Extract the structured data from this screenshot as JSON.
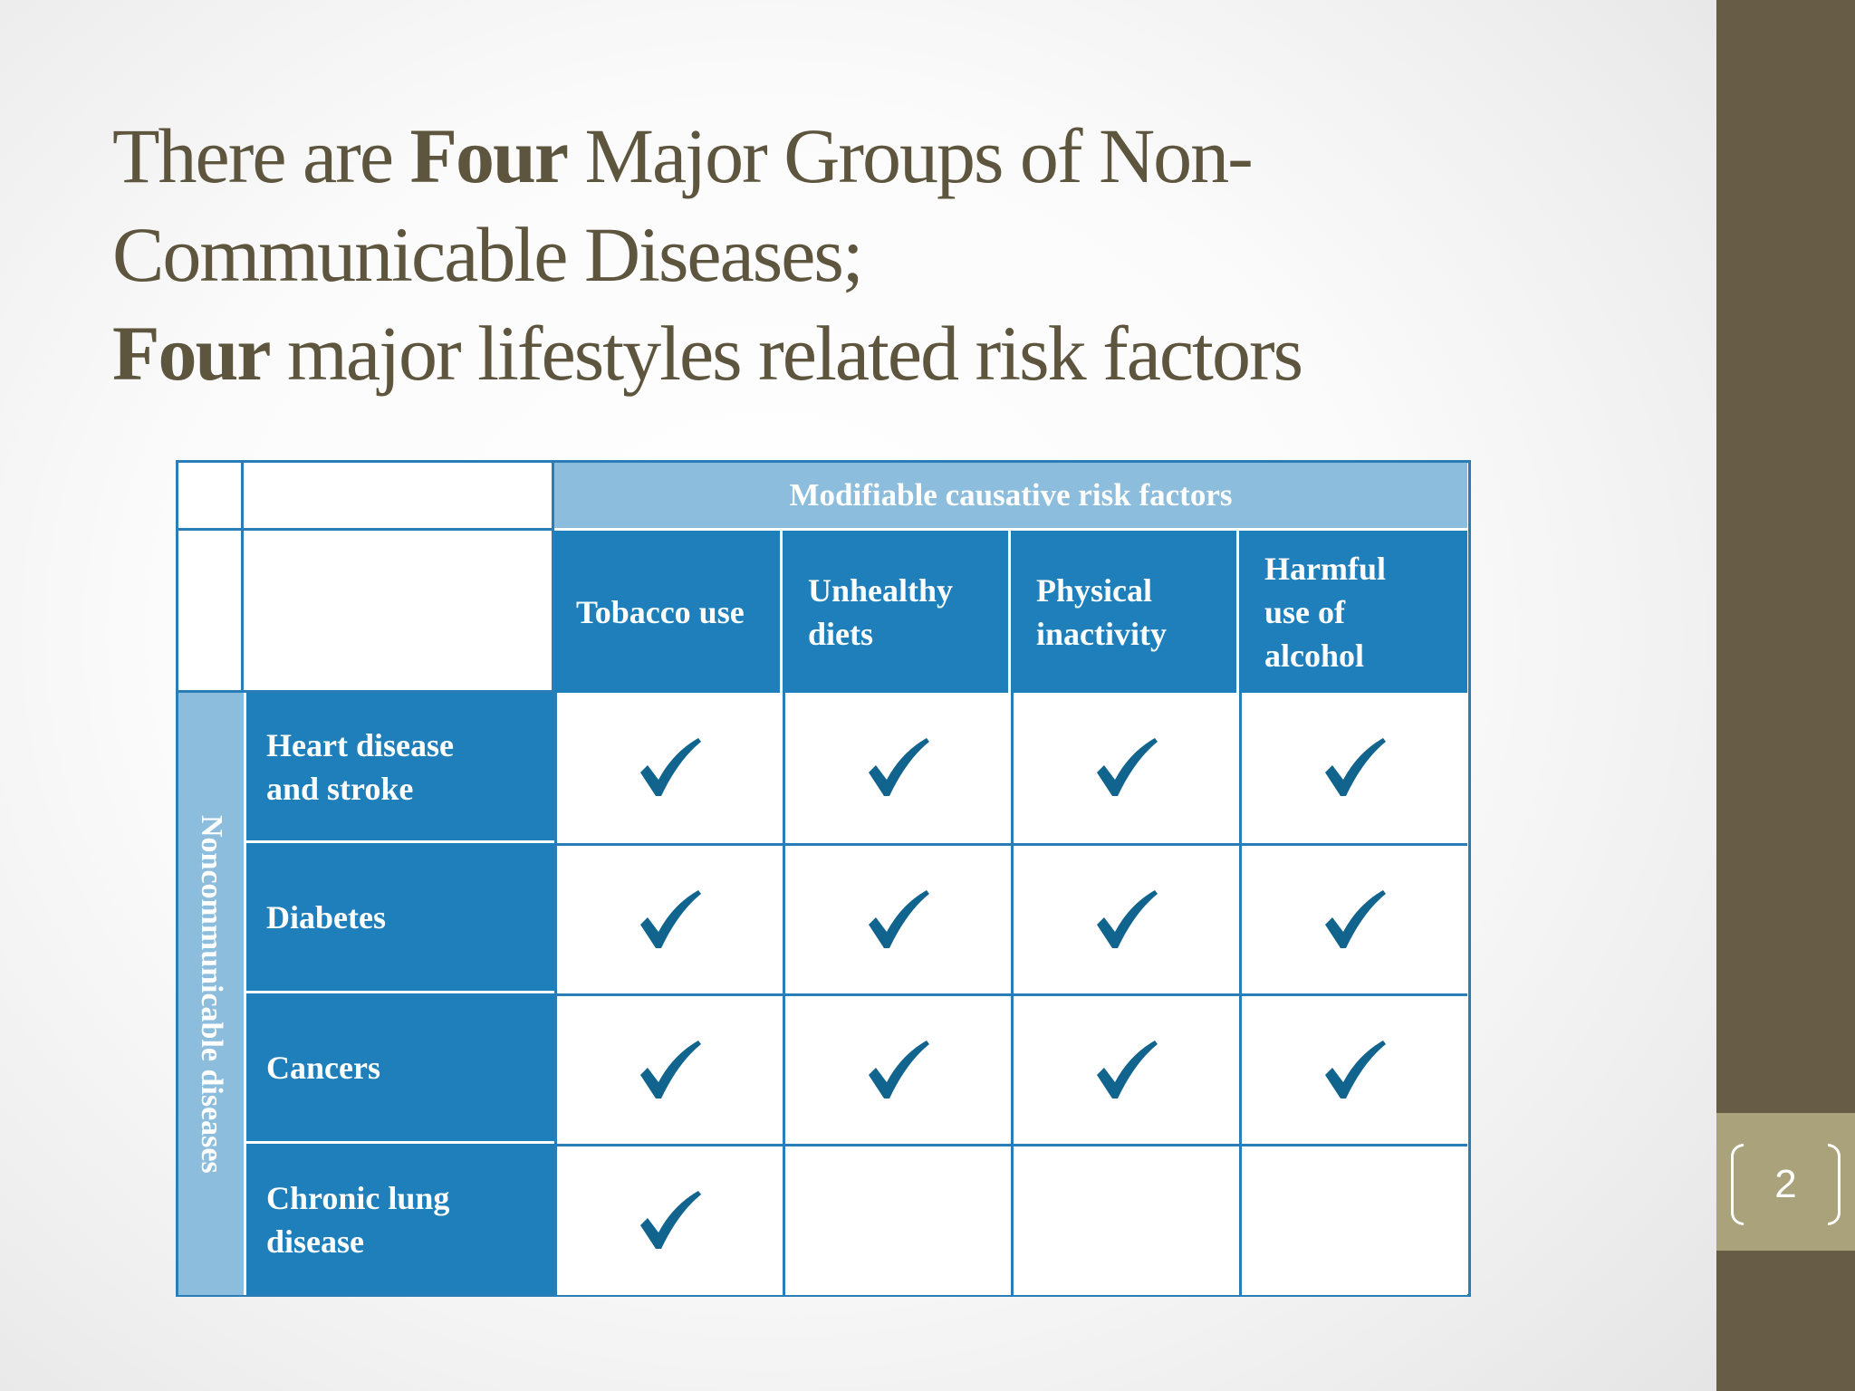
{
  "slide": {
    "title": {
      "line1_pre": "There are ",
      "line1_bold": "Four",
      "line1_post": " Major Groups of Non-",
      "line2": "Communicable Diseases;",
      "line3_bold": "Four",
      "line3_post": " major lifestyles related risk factors"
    },
    "page_number": "2",
    "colors": {
      "title": "#5d553d",
      "sidebar": "#675d46",
      "page_box": "#a9a27b",
      "header_dark": "#1f7fba",
      "header_light": "#8cbddc",
      "check": "#11648d"
    }
  },
  "table": {
    "super_header": "Modifiable causative risk factors",
    "row_group_label": "Noncommunicable diseases",
    "risk_factors": [
      {
        "line1": "Tobacco use",
        "line2": "",
        "line3": ""
      },
      {
        "line1": "Unhealthy",
        "line2": "diets",
        "line3": ""
      },
      {
        "line1": "Physical",
        "line2": "inactivity",
        "line3": ""
      },
      {
        "line1": "Harmful",
        "line2": "use of",
        "line3": "alcohol"
      }
    ],
    "diseases": [
      {
        "line1": "Heart disease",
        "line2": "and stroke"
      },
      {
        "line1": "Diabetes",
        "line2": ""
      },
      {
        "line1": "Cancers",
        "line2": ""
      },
      {
        "line1": "Chronic lung",
        "line2": "disease"
      }
    ],
    "matrix": [
      [
        true,
        true,
        true,
        true
      ],
      [
        true,
        true,
        true,
        true
      ],
      [
        true,
        true,
        true,
        true
      ],
      [
        true,
        false,
        false,
        false
      ]
    ],
    "check_icon": "checkmark-icon"
  }
}
